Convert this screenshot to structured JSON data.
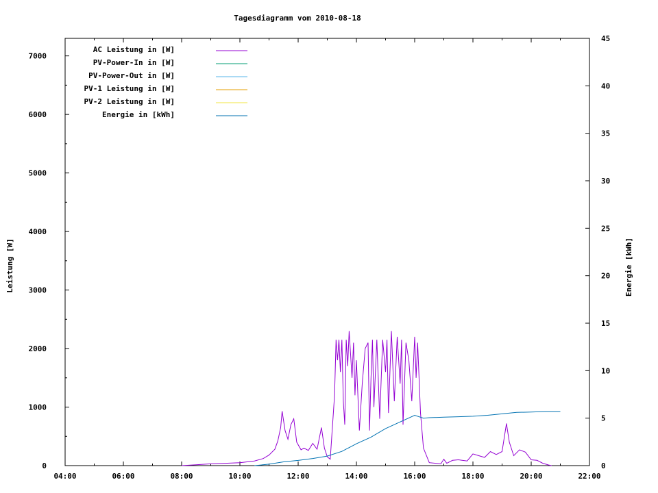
{
  "chart_data": {
    "type": "line",
    "title": "Tagesdiagramm vom 2010-08-18",
    "xlabel": "",
    "ylabel_left": "Leistung [W]",
    "ylabel_right": "Energie [kWh]",
    "x_ticks": [
      "04:00",
      "06:00",
      "08:00",
      "10:00",
      "12:00",
      "14:00",
      "16:00",
      "18:00",
      "20:00",
      "22:00"
    ],
    "xlim_hours": [
      4,
      22
    ],
    "ylim_left": [
      0,
      7300
    ],
    "ylim_right": [
      0,
      45
    ],
    "y_ticks_left": [
      0,
      1000,
      2000,
      3000,
      4000,
      5000,
      6000,
      7000
    ],
    "y_ticks_right": [
      0,
      5,
      10,
      15,
      20,
      25,
      30,
      35,
      40,
      45
    ],
    "legend_placement": "top-left",
    "grid": false,
    "series": [
      {
        "name": "AC Leistung in [W]",
        "axis": "left",
        "color": "#9400d3",
        "points": [
          [
            8.0,
            0
          ],
          [
            8.5,
            15
          ],
          [
            9.0,
            30
          ],
          [
            9.5,
            40
          ],
          [
            10.0,
            50
          ],
          [
            10.5,
            80
          ],
          [
            10.8,
            120
          ],
          [
            11.0,
            180
          ],
          [
            11.2,
            280
          ],
          [
            11.3,
            420
          ],
          [
            11.4,
            650
          ],
          [
            11.45,
            930
          ],
          [
            11.55,
            600
          ],
          [
            11.65,
            450
          ],
          [
            11.75,
            700
          ],
          [
            11.85,
            800
          ],
          [
            11.95,
            400
          ],
          [
            12.1,
            270
          ],
          [
            12.2,
            300
          ],
          [
            12.35,
            260
          ],
          [
            12.5,
            380
          ],
          [
            12.65,
            280
          ],
          [
            12.8,
            650
          ],
          [
            12.9,
            300
          ],
          [
            13.0,
            150
          ],
          [
            13.1,
            110
          ],
          [
            13.25,
            1200
          ],
          [
            13.3,
            2150
          ],
          [
            13.35,
            1800
          ],
          [
            13.4,
            2150
          ],
          [
            13.45,
            1600
          ],
          [
            13.5,
            2150
          ],
          [
            13.55,
            1100
          ],
          [
            13.6,
            700
          ],
          [
            13.65,
            2150
          ],
          [
            13.7,
            1700
          ],
          [
            13.75,
            2300
          ],
          [
            13.8,
            1900
          ],
          [
            13.85,
            1500
          ],
          [
            13.9,
            2100
          ],
          [
            13.95,
            1200
          ],
          [
            14.0,
            1800
          ],
          [
            14.1,
            600
          ],
          [
            14.2,
            1400
          ],
          [
            14.3,
            2000
          ],
          [
            14.4,
            2100
          ],
          [
            14.45,
            600
          ],
          [
            14.5,
            1500
          ],
          [
            14.55,
            2150
          ],
          [
            14.6,
            1000
          ],
          [
            14.7,
            2150
          ],
          [
            14.8,
            800
          ],
          [
            14.9,
            2150
          ],
          [
            15.0,
            1600
          ],
          [
            15.05,
            2150
          ],
          [
            15.1,
            900
          ],
          [
            15.2,
            2300
          ],
          [
            15.3,
            1100
          ],
          [
            15.4,
            2200
          ],
          [
            15.5,
            1400
          ],
          [
            15.55,
            2150
          ],
          [
            15.6,
            700
          ],
          [
            15.7,
            2100
          ],
          [
            15.8,
            1800
          ],
          [
            15.9,
            1100
          ],
          [
            16.0,
            2200
          ],
          [
            16.05,
            1500
          ],
          [
            16.1,
            2100
          ],
          [
            16.2,
            900
          ],
          [
            16.3,
            300
          ],
          [
            16.5,
            50
          ],
          [
            16.9,
            30
          ],
          [
            17.0,
            110
          ],
          [
            17.1,
            40
          ],
          [
            17.3,
            90
          ],
          [
            17.5,
            100
          ],
          [
            17.8,
            80
          ],
          [
            18.0,
            200
          ],
          [
            18.2,
            170
          ],
          [
            18.4,
            140
          ],
          [
            18.6,
            240
          ],
          [
            18.8,
            190
          ],
          [
            19.0,
            240
          ],
          [
            19.15,
            720
          ],
          [
            19.25,
            400
          ],
          [
            19.4,
            170
          ],
          [
            19.6,
            270
          ],
          [
            19.8,
            230
          ],
          [
            20.0,
            100
          ],
          [
            20.2,
            90
          ],
          [
            20.4,
            40
          ],
          [
            20.6,
            10
          ],
          [
            20.7,
            0
          ]
        ]
      },
      {
        "name": "PV-Power-In in [W]",
        "axis": "left",
        "color": "#009e73",
        "points": []
      },
      {
        "name": "PV-Power-Out in [W]",
        "axis": "left",
        "color": "#56b4e9",
        "points": []
      },
      {
        "name": "PV-1 Leistung in [W]",
        "axis": "left",
        "color": "#e69f00",
        "points": []
      },
      {
        "name": "PV-2 Leistung in [W]",
        "axis": "left",
        "color": "#f0e442",
        "points": []
      },
      {
        "name": "Energie in [kWh]",
        "axis": "right",
        "color": "#0072b2",
        "points": [
          [
            10.5,
            0
          ],
          [
            11.0,
            0.15
          ],
          [
            11.5,
            0.4
          ],
          [
            12.0,
            0.55
          ],
          [
            12.5,
            0.75
          ],
          [
            13.0,
            1.0
          ],
          [
            13.5,
            1.5
          ],
          [
            14.0,
            2.3
          ],
          [
            14.5,
            3.0
          ],
          [
            15.0,
            3.9
          ],
          [
            15.5,
            4.6
          ],
          [
            16.0,
            5.3
          ],
          [
            16.3,
            5.0
          ],
          [
            16.5,
            5.05
          ],
          [
            17.0,
            5.1
          ],
          [
            17.5,
            5.15
          ],
          [
            18.0,
            5.2
          ],
          [
            18.5,
            5.3
          ],
          [
            19.0,
            5.45
          ],
          [
            19.5,
            5.6
          ],
          [
            20.0,
            5.65
          ],
          [
            20.5,
            5.7
          ],
          [
            21.0,
            5.7
          ]
        ]
      }
    ]
  }
}
